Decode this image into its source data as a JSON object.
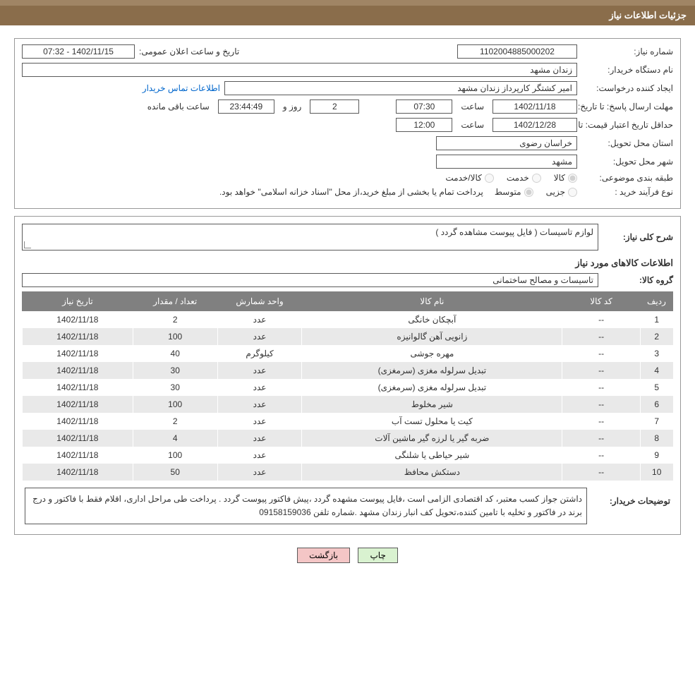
{
  "header": {
    "title": "جزئیات اطلاعات نیاز"
  },
  "fields": {
    "need_no_label": "شماره نیاز:",
    "need_no": "1102004885000202",
    "announce_label": "تاریخ و ساعت اعلان عمومی:",
    "announce_value": "1402/11/15 - 07:32",
    "buyer_org_label": "نام دستگاه خریدار:",
    "buyer_org": "زندان مشهد",
    "creator_label": "ایجاد کننده درخواست:",
    "creator": "امیر کشتگر کارپرداز زندان مشهد",
    "buyer_contact_link": "اطلاعات تماس خریدار",
    "reply_deadline_label": "مهلت ارسال پاسخ: تا تاریخ:",
    "reply_date": "1402/11/18",
    "time_label": "ساعت",
    "reply_time": "07:30",
    "days_and_label": "روز و",
    "days_remaining": "2",
    "countdown": "23:44:49",
    "remaining_label": "ساعت باقی مانده",
    "price_valid_label": "حداقل تاریخ اعتبار قیمت: تا تاریخ:",
    "price_valid_date": "1402/12/28",
    "price_valid_time": "12:00",
    "delivery_province_label": "استان محل تحویل:",
    "delivery_province": "خراسان رضوی",
    "delivery_city_label": "شهر محل تحویل:",
    "delivery_city": "مشهد",
    "classification_label": "طبقه بندی موضوعی:",
    "radio_goods": "کالا",
    "radio_service": "خدمت",
    "radio_goods_service": "کالا/خدمت",
    "purchase_type_label": "نوع فرآیند خرید :",
    "radio_partial": "جزیی",
    "radio_medium": "متوسط",
    "payment_note": "پرداخت تمام یا بخشی از مبلغ خرید،از محل \"اسناد خزانه اسلامی\" خواهد بود."
  },
  "general_desc": {
    "label": "شرح کلی نیاز:",
    "text": "لوازم تاسیسات ( فایل پیوست مشاهده گردد )"
  },
  "items_section_title": "اطلاعات کالاهای مورد نیاز",
  "goods_group": {
    "label": "گروه کالا:",
    "value": "تاسیسات و مصالح ساختمانی"
  },
  "table": {
    "columns": [
      "ردیف",
      "کد کالا",
      "نام کالا",
      "واحد شمارش",
      "تعداد / مقدار",
      "تاریخ نیاز"
    ],
    "col_widths": [
      "5%",
      "12%",
      "40%",
      "13%",
      "13%",
      "17%"
    ],
    "rows": [
      [
        "1",
        "--",
        "آبچکان خانگی",
        "عدد",
        "2",
        "1402/11/18"
      ],
      [
        "2",
        "--",
        "زانویی آهن گالوانیزه",
        "عدد",
        "100",
        "1402/11/18"
      ],
      [
        "3",
        "--",
        "مهره جوشی",
        "کیلوگرم",
        "40",
        "1402/11/18"
      ],
      [
        "4",
        "--",
        "تبدیل سرلوله مغزی (سرمغزی)",
        "عدد",
        "30",
        "1402/11/18"
      ],
      [
        "5",
        "--",
        "تبدیل سرلوله مغزی (سرمغزی)",
        "عدد",
        "30",
        "1402/11/18"
      ],
      [
        "6",
        "--",
        "شیر مخلوط",
        "عدد",
        "100",
        "1402/11/18"
      ],
      [
        "7",
        "--",
        "کیت یا محلول تست آب",
        "عدد",
        "2",
        "1402/11/18"
      ],
      [
        "8",
        "--",
        "ضربه گیر یا لرزه گیر ماشین آلات",
        "عدد",
        "4",
        "1402/11/18"
      ],
      [
        "9",
        "--",
        "شیر حیاطی یا شلنگی",
        "عدد",
        "100",
        "1402/11/18"
      ],
      [
        "10",
        "--",
        "دستکش محافظ",
        "عدد",
        "50",
        "1402/11/18"
      ]
    ]
  },
  "buyer_note": {
    "label": "توضیحات خریدار:",
    "text": "داشتن جواز کسب معتبر، کد اقتصادی الزامی است ،فایل پیوست مشهده گردد ،پیش فاکتور پیوست گردد . پرداخت طی مراحل اداری، اقلام فقط با فاکتور و درج برند در فاکتور و تخلیه با تامین کننده،تحویل کف انبار زندان مشهد .شماره تلفن 09158159036"
  },
  "buttons": {
    "print": "چاپ",
    "back": "بازگشت"
  },
  "colors": {
    "header_bg": "#8a6d4b",
    "header_top": "#a08565",
    "th_bg": "#808080",
    "row_alt": "#e9e9e9",
    "btn_print": "#d9f2d0",
    "btn_back": "#f4c6c6",
    "link": "#0066cc"
  }
}
